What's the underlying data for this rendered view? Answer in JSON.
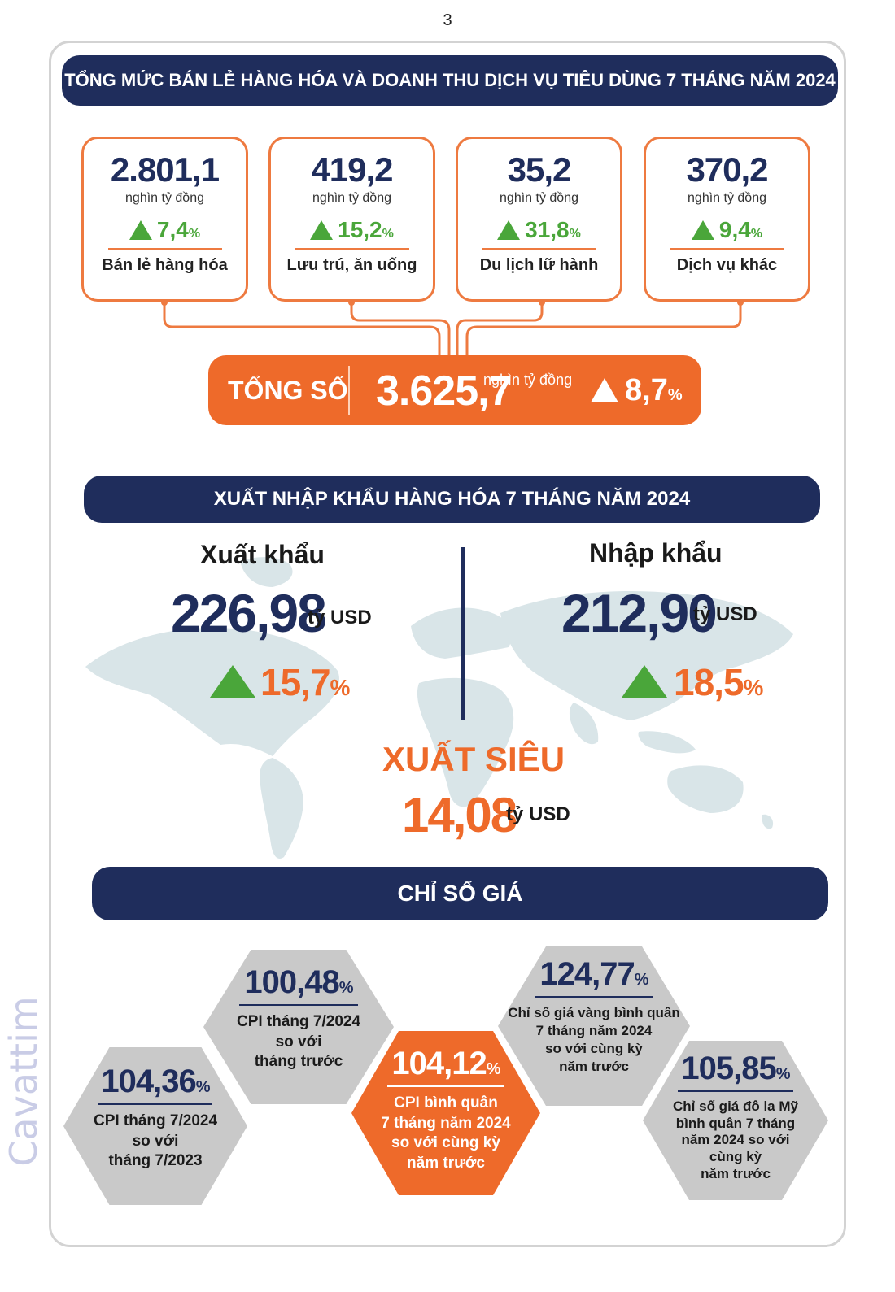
{
  "page_number": "3",
  "watermark": "Cavattim",
  "retail": {
    "title": "TỔNG MỨC BÁN LẺ HÀNG HÓA VÀ DOANH THU DỊCH VỤ TIÊU DÙNG 7 THÁNG NĂM 2024",
    "unit": "nghìn tỷ đồng",
    "items": [
      {
        "value": "2.801,1",
        "change": "7,4",
        "label": "Bán lẻ hàng hóa"
      },
      {
        "value": "419,2",
        "change": "15,2",
        "label": "Lưu trú, ăn uống"
      },
      {
        "value": "35,2",
        "change": "31,8",
        "label": "Du lịch lữ hành"
      },
      {
        "value": "370,2",
        "change": "9,4",
        "label": "Dịch vụ khác"
      }
    ],
    "total": {
      "label": "TỔNG SỐ",
      "value": "3.625,7",
      "unit": "nghìn tỷ đồng",
      "change": "8,7"
    }
  },
  "trade": {
    "title": "XUẤT NHẬP KHẨU HÀNG HÓA 7 THÁNG NĂM 2024",
    "export": {
      "label": "Xuất khẩu",
      "value": "226,98",
      "unit": "tỷ USD",
      "change": "15,7"
    },
    "import": {
      "label": "Nhập khẩu",
      "value": "212,90",
      "unit": "tỷ USD",
      "change": "18,5"
    },
    "surplus": {
      "label": "XUẤT SIÊU",
      "value": "14,08",
      "unit": "tỷ USD"
    }
  },
  "prices": {
    "title": "CHỈ SỐ GIÁ",
    "items": [
      {
        "value": "104,36",
        "desc": "CPI tháng 7/2024\nso với\ntháng 7/2023",
        "color": "#c9c9c9"
      },
      {
        "value": "100,48",
        "desc": "CPI tháng 7/2024\nso với\ntháng trước",
        "color": "#c9c9c9"
      },
      {
        "value": "104,12",
        "desc": "CPI bình quân\n7 tháng năm 2024\nso với cùng kỳ\nnăm trước",
        "color": "#ee6a2a"
      },
      {
        "value": "124,77",
        "desc": "Chỉ số giá vàng bình quân\n7 tháng năm 2024\nso với cùng kỳ\nnăm trước",
        "color": "#c9c9c9"
      },
      {
        "value": "105,85",
        "desc": "Chỉ số giá đô la Mỹ\nbình quân 7 tháng\nnăm 2024 so với\ncùng kỳ\nnăm trước",
        "color": "#c9c9c9"
      }
    ]
  },
  "colors": {
    "navy": "#1f2d5c",
    "orange": "#ee6a2a",
    "green": "#4aa63a",
    "grey": "#c9c9c9"
  }
}
